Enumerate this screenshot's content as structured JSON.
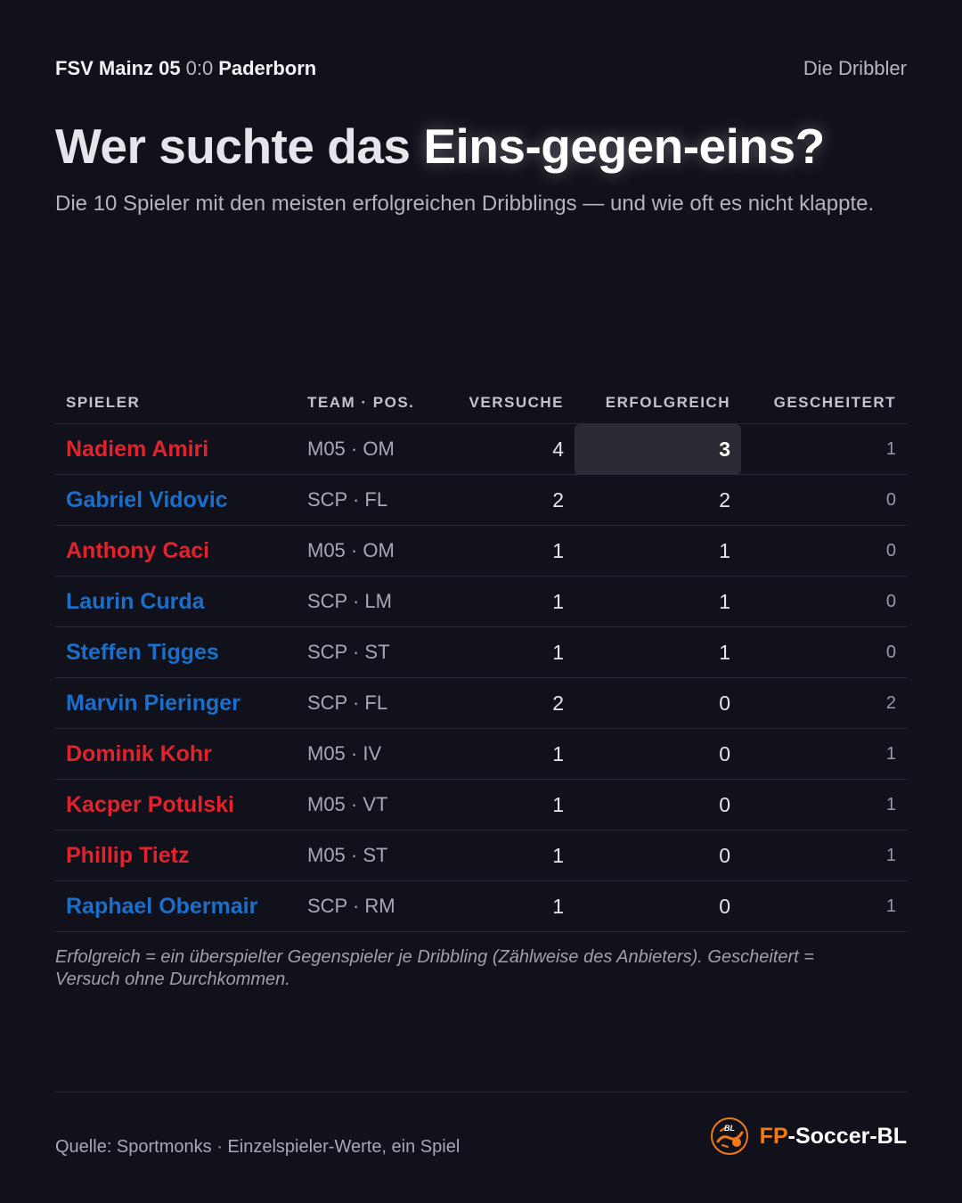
{
  "header": {
    "home_team": "FSV Mainz 05",
    "score": "0:0",
    "away_team": "Paderborn",
    "kicker": "Die Dribbler"
  },
  "title": {
    "prefix": "Wer suchte das",
    "highlight": "Eins-gegen-eins?"
  },
  "subtitle": "Die 10 Spieler mit den meisten erfolgreichen Dribblings — und wie oft es nicht klappte.",
  "table": {
    "columns": [
      "SPIELER",
      "TEAM · POS.",
      "VERSUCHE",
      "ERFOLGREICH",
      "GESCHEITERT"
    ],
    "rows": [
      {
        "name": "Nadiem Amiri",
        "team": "M05 · OM",
        "attempts": "4",
        "successful": "3",
        "failed": "1"
      },
      {
        "name": "Gabriel Vidovic",
        "team": "SCP · FL",
        "attempts": "2",
        "successful": "2",
        "failed": "0"
      },
      {
        "name": "Anthony Caci",
        "team": "M05 · OM",
        "attempts": "1",
        "successful": "1",
        "failed": "0"
      },
      {
        "name": "Laurin Curda",
        "team": "SCP · LM",
        "attempts": "1",
        "successful": "1",
        "failed": "0"
      },
      {
        "name": "Steffen Tigges",
        "team": "SCP · ST",
        "attempts": "1",
        "successful": "1",
        "failed": "0"
      },
      {
        "name": "Marvin Pieringer",
        "team": "SCP · FL",
        "attempts": "2",
        "successful": "0",
        "failed": "2"
      },
      {
        "name": "Dominik Kohr",
        "team": "M05 · IV",
        "attempts": "1",
        "successful": "0",
        "failed": "1"
      },
      {
        "name": "Kacper Potulski",
        "team": "M05 · VT",
        "attempts": "1",
        "successful": "0",
        "failed": "1"
      },
      {
        "name": "Phillip Tietz",
        "team": "M05 · ST",
        "attempts": "1",
        "successful": "0",
        "failed": "1"
      },
      {
        "name": "Raphael Obermair",
        "team": "SCP · RM",
        "attempts": "1",
        "successful": "0",
        "failed": "1"
      }
    ]
  },
  "note": "Erfolgreich = ein überspielter Gegenspieler je Dribbling (Zählweise des Anbieters). Gescheitert = Versuch ohne Durchkommen.",
  "footer": {
    "source": "Quelle: Sportmonks · Einzelspieler-Werte, ein Spiel",
    "brand_prefix": "FP",
    "brand_suffix": "-Soccer-BL",
    "logo_text": "BL",
    "logo_icon": "soccer-ball-logo-icon"
  },
  "colors": {
    "background": "#10111a",
    "mainz": "#e0232d",
    "paderborn": "#1c6fc9",
    "brand_orange": "#f07a17",
    "highlight_cell": "#2a2b35"
  }
}
